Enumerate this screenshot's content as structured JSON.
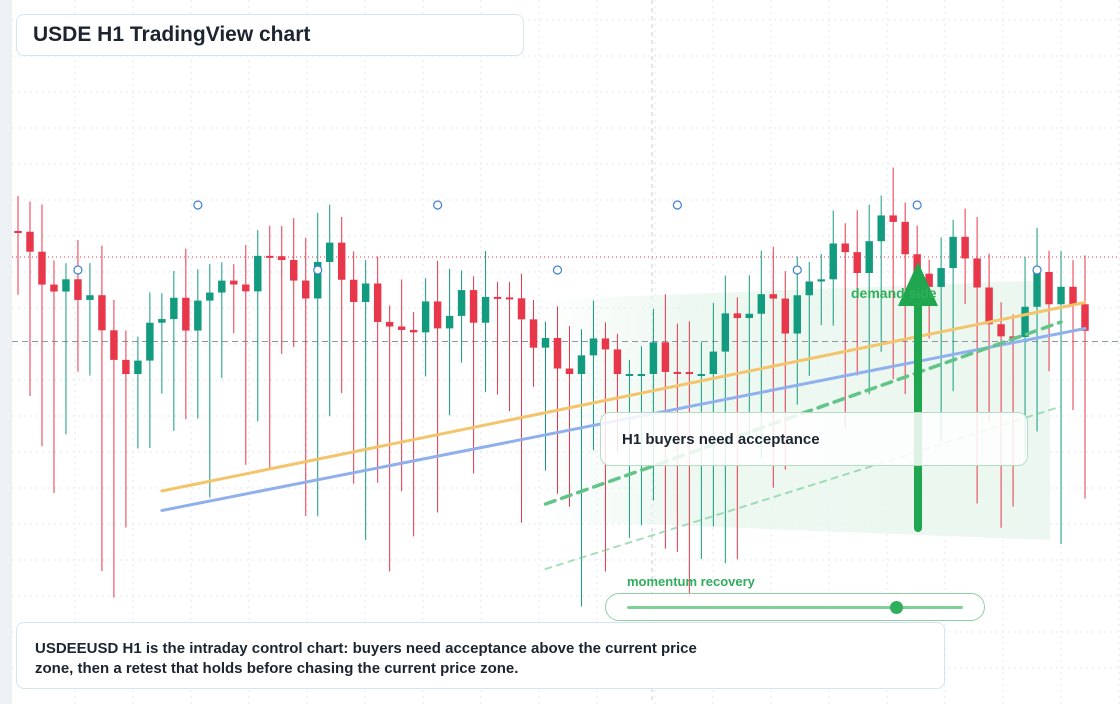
{
  "title": "USDE H1 TradingView chart",
  "callout": "H1 buyers need acceptance",
  "demand_label": "demand side",
  "momentum": {
    "label": "momentum recovery",
    "level": 0.8
  },
  "note": "USDEEUSD H1 is the intraday control chart: buyers need acceptance above the current price zone, then a retest that holds before chasing the current price zone.",
  "colors": {
    "up": "#139b80",
    "down": "#e8364b",
    "accent": "#1fa64e",
    "trend_orange": "#f4c46b",
    "trend_blue": "#8fb0ec",
    "trend_green": "#62c487"
  },
  "chart_data": {
    "type": "candlestick",
    "timeframe": "H1",
    "candle_count": 90,
    "seed": 7,
    "price_range": [
      0,
      100
    ],
    "reference_levels": {
      "dotted_red": 62,
      "dashed_gray": 49
    },
    "trendlines": [
      {
        "name": "orange",
        "from": [
          12,
          26
        ],
        "to": [
          89,
          55
        ]
      },
      {
        "name": "blue",
        "from": [
          12,
          23
        ],
        "to": [
          89,
          51
        ]
      },
      {
        "name": "green dashed",
        "from": [
          44,
          24
        ],
        "to": [
          87,
          52
        ]
      },
      {
        "name": "green dotted",
        "from": [
          44,
          14
        ],
        "to": [
          87,
          39
        ]
      }
    ],
    "markers": [
      5,
      15,
      25,
      35,
      45,
      55,
      65,
      75,
      85
    ],
    "annotations": [
      "H1 buyers need acceptance",
      "demand side",
      "momentum recovery"
    ],
    "grid": true
  }
}
